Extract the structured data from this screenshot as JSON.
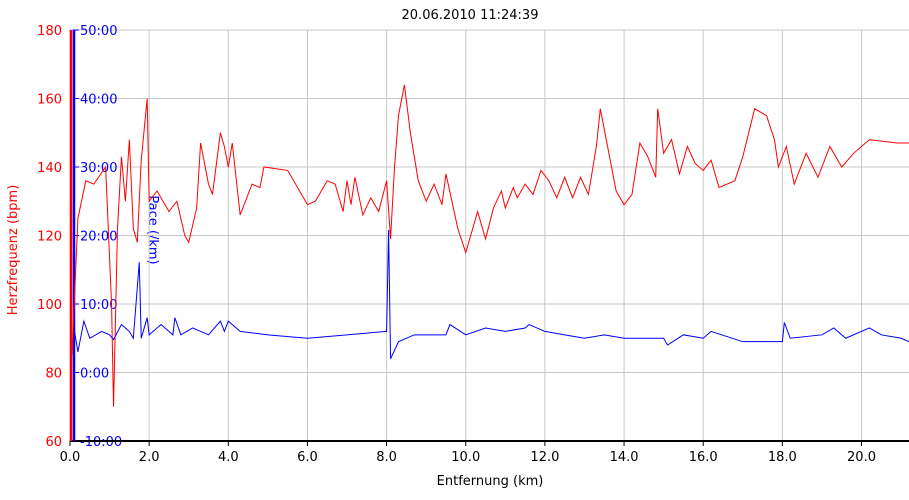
{
  "chart_data": {
    "type": "line",
    "title": "20.06.2010 11:24:39",
    "x_label": "Entfernung (km)",
    "y_label": "Herzfrequenz (bpm)",
    "y2_label": "Pace (/km)",
    "xlim": [
      0,
      21.2
    ],
    "xticks": [
      {
        "value": 0,
        "label": "0.0"
      },
      {
        "value": 2,
        "label": "2.0"
      },
      {
        "value": 4,
        "label": "4.0"
      },
      {
        "value": 6,
        "label": "6.0"
      },
      {
        "value": 8,
        "label": "8.0"
      },
      {
        "value": 10,
        "label": "10.0"
      },
      {
        "value": 12,
        "label": "12.0"
      },
      {
        "value": 14,
        "label": "14.0"
      },
      {
        "value": 16,
        "label": "16.0"
      },
      {
        "value": 18,
        "label": "18.0"
      },
      {
        "value": 20,
        "label": "20.0"
      }
    ],
    "ylim": [
      60,
      180
    ],
    "yticks": [
      60,
      80,
      100,
      120,
      140,
      160,
      180
    ],
    "y2lim": [
      -10,
      50
    ],
    "y2ticks": [
      {
        "value": -10,
        "label": "-10:00"
      },
      {
        "value": 0,
        "label": "0:00"
      },
      {
        "value": 10,
        "label": "10:00"
      },
      {
        "value": 20,
        "label": "20:00"
      },
      {
        "value": 30,
        "label": "30:00"
      },
      {
        "value": 40,
        "label": "40:00"
      },
      {
        "value": 50,
        "label": "50:00"
      }
    ],
    "grid": true,
    "series": [
      {
        "name": "Herzfrequenz",
        "color": "#ff0000",
        "x": [
          0.05,
          0.2,
          0.4,
          0.6,
          0.9,
          1.05,
          1.1,
          1.2,
          1.3,
          1.4,
          1.5,
          1.6,
          1.7,
          1.8,
          1.95,
          2.0,
          2.2,
          2.5,
          2.7,
          2.9,
          3.0,
          3.2,
          3.3,
          3.5,
          3.6,
          3.8,
          3.9,
          4.0,
          4.1,
          4.3,
          4.6,
          4.8,
          4.9,
          5.5,
          6.0,
          6.2,
          6.5,
          6.7,
          6.9,
          7.0,
          7.1,
          7.2,
          7.4,
          7.6,
          7.8,
          8.0,
          8.1,
          8.2,
          8.3,
          8.45,
          8.6,
          8.8,
          9.0,
          9.2,
          9.4,
          9.5,
          9.8,
          10.0,
          10.3,
          10.5,
          10.7,
          10.9,
          11.0,
          11.2,
          11.3,
          11.5,
          11.7,
          11.9,
          12.1,
          12.3,
          12.5,
          12.7,
          12.9,
          13.1,
          13.3,
          13.4,
          13.6,
          13.8,
          14.0,
          14.2,
          14.4,
          14.6,
          14.8,
          14.85,
          15.0,
          15.2,
          15.4,
          15.6,
          15.8,
          16.0,
          16.2,
          16.4,
          16.8,
          17.0,
          17.3,
          17.6,
          17.8,
          17.9,
          18.1,
          18.3,
          18.6,
          18.9,
          19.2,
          19.5,
          19.8,
          20.2,
          20.9,
          21.2
        ],
        "values": [
          85,
          125,
          136,
          135,
          140,
          100,
          70,
          122,
          143,
          130,
          148,
          122,
          118,
          142,
          160,
          130,
          133,
          127,
          130,
          120,
          118,
          128,
          147,
          135,
          132,
          150,
          146,
          140,
          147,
          126,
          135,
          134,
          140,
          139,
          129,
          130,
          136,
          135,
          127,
          136,
          129,
          137,
          126,
          131,
          127,
          136,
          119,
          140,
          155,
          164,
          150,
          136,
          130,
          135,
          129,
          138,
          122,
          115,
          127,
          119,
          128,
          133,
          128,
          134,
          131,
          135,
          132,
          139,
          136,
          131,
          137,
          131,
          137,
          132,
          146,
          157,
          145,
          133,
          129,
          132,
          147,
          143,
          137,
          157,
          144,
          148,
          138,
          146,
          141,
          139,
          142,
          134,
          136,
          143,
          157,
          155,
          148,
          140,
          146,
          135,
          144,
          137,
          146,
          140,
          144,
          148,
          147,
          147
        ]
      },
      {
        "name": "Pace",
        "color": "#0000ff",
        "axis": "y2",
        "x": [
          0.1,
          0.2,
          0.35,
          0.5,
          0.8,
          1.0,
          1.1,
          1.3,
          1.5,
          1.6,
          1.75,
          1.8,
          1.95,
          2.0,
          2.3,
          2.6,
          2.65,
          2.8,
          3.1,
          3.5,
          3.8,
          3.9,
          4.0,
          4.3,
          5.0,
          6.0,
          7.0,
          8.0,
          8.05,
          8.1,
          8.3,
          8.7,
          9.5,
          9.6,
          10.0,
          10.5,
          11.0,
          11.5,
          11.6,
          12.0,
          12.5,
          13.0,
          13.5,
          14.0,
          15.0,
          15.1,
          15.5,
          16.0,
          16.2,
          17.0,
          18.0,
          18.05,
          18.2,
          19.0,
          19.3,
          19.6,
          20.2,
          20.5,
          21.0,
          21.2
        ],
        "values": [
          6.5,
          3,
          7.5,
          5,
          6,
          5.5,
          4.8,
          7,
          6,
          5,
          16.1,
          5,
          8,
          5.5,
          7,
          5.5,
          8,
          5.5,
          6.5,
          5.5,
          7.5,
          6,
          7.5,
          6,
          5.5,
          5,
          5.5,
          6,
          20.8,
          2,
          4.5,
          5.5,
          5.5,
          7,
          5.5,
          6.5,
          6,
          6.5,
          7,
          6,
          5.5,
          5,
          5.5,
          5,
          5,
          4,
          5.5,
          5,
          6,
          4.5,
          4.5,
          7.3,
          5,
          5.5,
          6.5,
          5,
          6.5,
          5.5,
          5,
          4.5
        ]
      }
    ]
  }
}
